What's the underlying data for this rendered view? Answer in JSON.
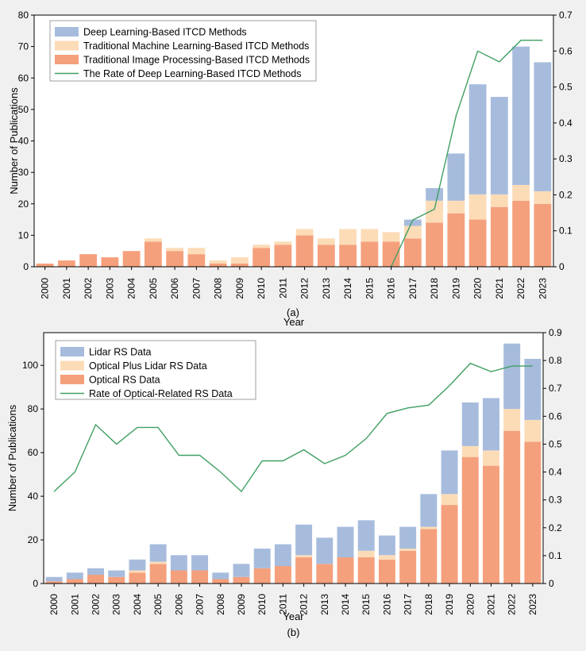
{
  "colors": {
    "deep_learning": "#a7bcdd",
    "traditional_ml": "#fcdcb7",
    "traditional_ip": "#f5a07c",
    "rate_line": "#3f9f63",
    "lidar": "#a7bcdd",
    "optical_plus_lidar": "#fcdcb7",
    "optical": "#f5a07c",
    "background": "#f0f0f0",
    "plot_bg": "#ffffff"
  },
  "chart_data": [
    {
      "type": "bar",
      "stacked": true,
      "caption": "(a)",
      "title": "",
      "xlabel": "Year",
      "ylabel": "Number of Publications",
      "ylim": [
        0,
        80
      ],
      "yticks": [
        0,
        10,
        20,
        30,
        40,
        50,
        60,
        70,
        80
      ],
      "y2lim": [
        0,
        0.7
      ],
      "y2ticks": [
        "0",
        "0.1",
        "0.2",
        "0.3",
        "0.4",
        "0.5",
        "0.6",
        "0.7"
      ],
      "grid": false,
      "legend_position": "top-left",
      "categories": [
        "2000",
        "2001",
        "2002",
        "2003",
        "2004",
        "2005",
        "2006",
        "2007",
        "2008",
        "2009",
        "2010",
        "2011",
        "2012",
        "2013",
        "2014",
        "2015",
        "2016",
        "2017",
        "2018",
        "2019",
        "2020",
        "2021",
        "2022",
        "2023"
      ],
      "series": [
        {
          "name": "Traditional Image Processing-Based ITCD Methods",
          "color_key": "traditional_ip",
          "values": [
            1,
            2,
            4,
            3,
            5,
            8,
            5,
            4,
            1,
            1,
            6,
            7,
            10,
            7,
            7,
            8,
            8,
            9,
            14,
            17,
            15,
            19,
            21,
            20
          ]
        },
        {
          "name": "Traditional Machine Learning-Based ITCD Methods",
          "color_key": "traditional_ml",
          "values": [
            0,
            0,
            0,
            0,
            0,
            1,
            1,
            2,
            1,
            2,
            1,
            1,
            2,
            2,
            5,
            4,
            3,
            4,
            7,
            4,
            8,
            4,
            5,
            4
          ]
        },
        {
          "name": "Deep Learning-Based ITCD Methods",
          "color_key": "deep_learning",
          "values": [
            0,
            0,
            0,
            0,
            0,
            0,
            0,
            0,
            0,
            0,
            0,
            0,
            0,
            0,
            0,
            0,
            0,
            2,
            4,
            15,
            35,
            31,
            44,
            41
          ]
        }
      ],
      "line": {
        "name": "The Rate of Deep Learning-Based ITCD Methods",
        "color_key": "rate_line",
        "axis": "right",
        "x_start": "2016",
        "values": [
          0,
          0.13,
          0.16,
          0.42,
          0.6,
          0.57,
          0.63,
          0.63
        ]
      },
      "legend_order": [
        "Deep Learning-Based ITCD Methods",
        "Traditional Machine Learning-Based ITCD Methods",
        "Traditional Image Processing-Based ITCD Methods",
        "The Rate of Deep Learning-Based ITCD Methods"
      ]
    },
    {
      "type": "bar",
      "stacked": true,
      "caption": "(b)",
      "title": "",
      "xlabel": "Year",
      "ylabel": "Number of Publications",
      "ylim": [
        0,
        115
      ],
      "yticks": [
        0,
        20,
        40,
        60,
        80,
        100
      ],
      "y2lim": [
        0,
        0.9
      ],
      "y2ticks": [
        "0",
        "0.1",
        "0.2",
        "0.3",
        "0.4",
        "0.5",
        "0.6",
        "0.7",
        "0.8",
        "0.9"
      ],
      "grid": false,
      "legend_position": "top-left",
      "categories": [
        "2000",
        "2001",
        "2002",
        "2003",
        "2004",
        "2005",
        "2006",
        "2007",
        "2008",
        "2009",
        "2010",
        "2011",
        "2012",
        "2013",
        "2014",
        "2015",
        "2016",
        "2017",
        "2018",
        "2019",
        "2020",
        "2021",
        "2022",
        "2023"
      ],
      "series": [
        {
          "name": "Optical RS Data",
          "color_key": "optical",
          "values": [
            1,
            2,
            4,
            3,
            5,
            9,
            6,
            6,
            2,
            3,
            7,
            8,
            12,
            9,
            12,
            12,
            11,
            15,
            25,
            36,
            58,
            54,
            70,
            65
          ]
        },
        {
          "name": "Optical Plus Lidar RS Data",
          "color_key": "optical_plus_lidar",
          "values": [
            0,
            0,
            0,
            0,
            1,
            1,
            0,
            0,
            0,
            0,
            0,
            0,
            1,
            0,
            0,
            3,
            2,
            1,
            1,
            5,
            5,
            7,
            10,
            10
          ]
        },
        {
          "name": "Lidar RS Data",
          "color_key": "lidar",
          "values": [
            2,
            3,
            3,
            3,
            5,
            8,
            7,
            7,
            3,
            6,
            9,
            10,
            14,
            12,
            14,
            14,
            9,
            10,
            15,
            20,
            20,
            24,
            30,
            28
          ]
        }
      ],
      "line": {
        "name": "Rate of Optical-Related RS Data",
        "color_key": "rate_line",
        "axis": "right",
        "x_start": "2000",
        "values": [
          0.33,
          0.4,
          0.57,
          0.5,
          0.56,
          0.56,
          0.46,
          0.46,
          0.4,
          0.33,
          0.44,
          0.44,
          0.48,
          0.43,
          0.46,
          0.52,
          0.61,
          0.63,
          0.64,
          0.71,
          0.79,
          0.76,
          0.78,
          0.78
        ]
      },
      "legend_order": [
        "Lidar RS Data",
        "Optical Plus Lidar RS Data",
        "Optical RS Data",
        "Rate of Optical-Related RS Data"
      ]
    }
  ]
}
